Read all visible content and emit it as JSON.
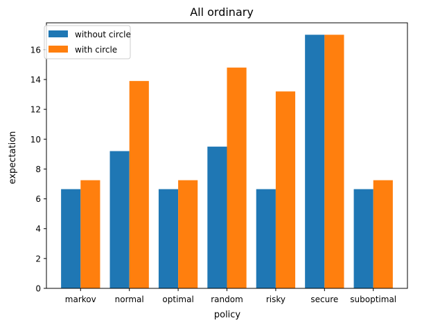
{
  "chart_data": {
    "type": "bar",
    "title": "All ordinary",
    "xlabel": "policy",
    "ylabel": "expectation",
    "categories": [
      "markov",
      "normal",
      "optimal",
      "random",
      "risky",
      "secure",
      "suboptimal"
    ],
    "series": [
      {
        "name": "without circle",
        "color": "#1f77b4",
        "values": [
          6.65,
          9.2,
          6.65,
          9.5,
          6.65,
          17.0,
          6.65
        ]
      },
      {
        "name": "with circle",
        "color": "#ff7f0e",
        "values": [
          7.25,
          13.9,
          7.25,
          14.8,
          13.2,
          17.0,
          7.25
        ]
      }
    ],
    "ylim": [
      0,
      17.8
    ],
    "yticks": [
      0,
      2,
      4,
      6,
      8,
      10,
      12,
      14,
      16
    ],
    "ytick_labels": [
      "0",
      "2",
      "4",
      "6",
      "8",
      "10",
      "12",
      "14",
      "16"
    ],
    "grid": false,
    "legend_position": "top-left"
  }
}
